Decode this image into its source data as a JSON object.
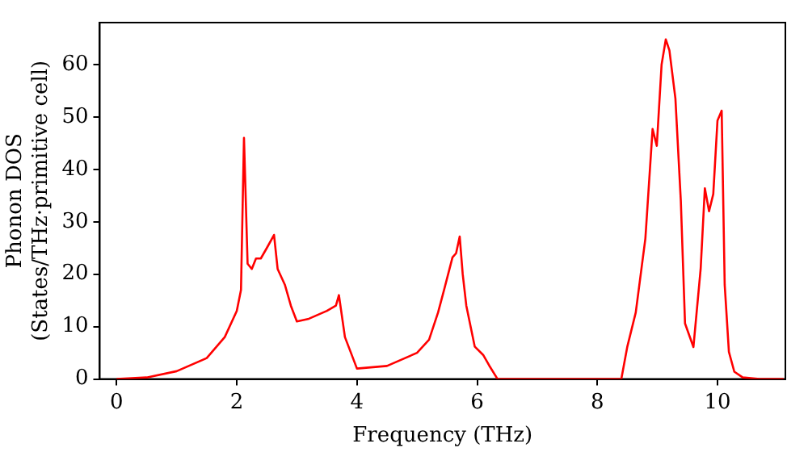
{
  "chart_data": {
    "type": "line",
    "xlabel": "Frequency (THz)",
    "ylabel": "Phonon DOS\n(States/THz·primitive cell)",
    "xlim": [
      -0.28,
      11.13
    ],
    "ylim": [
      0,
      68
    ],
    "xticks": [
      0,
      2,
      4,
      6,
      8,
      10
    ],
    "yticks": [
      0,
      10,
      20,
      30,
      40,
      50,
      60
    ],
    "grid": false,
    "legend": false,
    "marker": "none",
    "line_style": "solid",
    "series": [
      {
        "color": "#ff0000",
        "x": [
          0,
          0.5,
          1,
          1.5,
          1.8,
          2.0,
          2.07,
          2.12,
          2.18,
          2.25,
          2.32,
          2.4,
          2.5,
          2.62,
          2.68,
          2.8,
          2.9,
          3.0,
          3.2,
          3.5,
          3.65,
          3.7,
          3.8,
          3.9,
          4.0,
          4.5,
          5.0,
          5.2,
          5.35,
          5.45,
          5.59,
          5.65,
          5.71,
          5.76,
          5.82,
          5.96,
          6.1,
          6.2,
          6.34,
          7.0,
          8.0,
          8.4,
          8.5,
          8.64,
          8.8,
          8.92,
          8.99,
          9.07,
          9.14,
          9.2,
          9.3,
          9.39,
          9.46,
          9.6,
          9.72,
          9.79,
          9.86,
          9.93,
          10.0,
          10.07,
          10.12,
          10.19,
          10.28,
          10.42,
          10.7,
          11.1
        ],
        "values": [
          0,
          0.3,
          1.5,
          4,
          8,
          13,
          17,
          46,
          22,
          21,
          23,
          23,
          25,
          27.5,
          21,
          18,
          14,
          11,
          11.5,
          13,
          14,
          16,
          8,
          5,
          2,
          2.5,
          5,
          7.5,
          12.7,
          17,
          23.2,
          24,
          27.2,
          20,
          14,
          6.2,
          4.6,
          2.6,
          0,
          0,
          0,
          0,
          6.2,
          12.7,
          26.8,
          47.7,
          44.5,
          60,
          64.8,
          62.7,
          53.5,
          34,
          10.6,
          6.1,
          21,
          36.4,
          32,
          35.3,
          49.3,
          51.2,
          18,
          5.2,
          1.4,
          0.3,
          0,
          0
        ]
      }
    ]
  }
}
